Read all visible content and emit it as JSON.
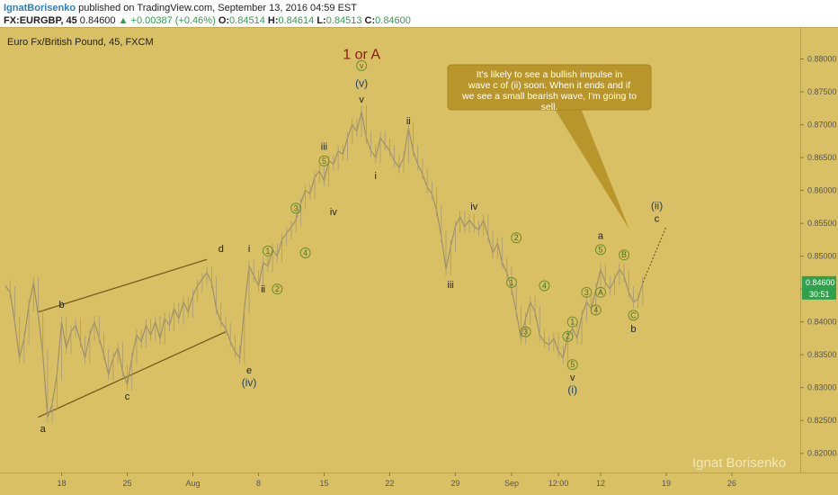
{
  "header": {
    "author": "IgnatBorisenko",
    "published": "published on TradingView.com, September 13, 2016 04:59 EST",
    "symbol": "FX:EURGBP, 45",
    "price": "0.84600",
    "change": "▲ +0.00387 (+0.46%)",
    "o_label": "O:",
    "o_value": "0.84514",
    "h_label": "H:",
    "h_value": "0.84614",
    "l_label": "L:",
    "l_value": "0.84513",
    "c_label": "C:",
    "c_value": "0.84600"
  },
  "colors": {
    "background": "#d9c064",
    "trend_line": "#7a5a1e",
    "price_line": "#9b8c6a",
    "callout": "#b8962b",
    "price_badge": "#2fa14a"
  },
  "chart_data": {
    "type": "line",
    "title": "Euro Fx/British Pound, 45, FXCM",
    "ylim": [
      0.8175,
      0.8835
    ],
    "y_ticks": [
      "0.88000",
      "0.87500",
      "0.87000",
      "0.86500",
      "0.86000",
      "0.85500",
      "0.85000",
      "0.84500",
      "0.84000",
      "0.83500",
      "0.83000",
      "0.82500",
      "0.82000"
    ],
    "y_tick_values": [
      0.88,
      0.875,
      0.87,
      0.865,
      0.86,
      0.855,
      0.85,
      0.845,
      0.84,
      0.835,
      0.83,
      0.825,
      0.82
    ],
    "x_ticks": [
      "18",
      "25",
      "Aug",
      "8",
      "15",
      "22",
      "29",
      "Sep",
      "12:00",
      "12",
      "19",
      "26"
    ],
    "x_tick_index": [
      12,
      26,
      40,
      54,
      68,
      82,
      96,
      108,
      118,
      127,
      141,
      155
    ],
    "x_range": [
      0,
      160
    ],
    "price": [
      [
        0,
        0.8455
      ],
      [
        1,
        0.8445
      ],
      [
        2,
        0.84
      ],
      [
        3,
        0.8345
      ],
      [
        4,
        0.8375
      ],
      [
        5,
        0.8425
      ],
      [
        6,
        0.846
      ],
      [
        7,
        0.841
      ],
      [
        8,
        0.835
      ],
      [
        9,
        0.8255
      ],
      [
        10,
        0.8275
      ],
      [
        11,
        0.832
      ],
      [
        12,
        0.84
      ],
      [
        13,
        0.836
      ],
      [
        14,
        0.8385
      ],
      [
        15,
        0.8395
      ],
      [
        16,
        0.837
      ],
      [
        17,
        0.8345
      ],
      [
        18,
        0.838
      ],
      [
        19,
        0.84
      ],
      [
        20,
        0.8375
      ],
      [
        21,
        0.835
      ],
      [
        22,
        0.832
      ],
      [
        23,
        0.8345
      ],
      [
        24,
        0.836
      ],
      [
        25,
        0.8325
      ],
      [
        26,
        0.8305
      ],
      [
        27,
        0.8345
      ],
      [
        28,
        0.838
      ],
      [
        29,
        0.837
      ],
      [
        30,
        0.8395
      ],
      [
        31,
        0.838
      ],
      [
        32,
        0.84
      ],
      [
        33,
        0.8375
      ],
      [
        34,
        0.8405
      ],
      [
        35,
        0.8395
      ],
      [
        36,
        0.842
      ],
      [
        37,
        0.8405
      ],
      [
        38,
        0.843
      ],
      [
        39,
        0.8415
      ],
      [
        40,
        0.844
      ],
      [
        41,
        0.8455
      ],
      [
        42,
        0.8465
      ],
      [
        43,
        0.8475
      ],
      [
        44,
        0.846
      ],
      [
        45,
        0.842
      ],
      [
        46,
        0.84
      ],
      [
        47,
        0.839
      ],
      [
        48,
        0.837
      ],
      [
        49,
        0.8355
      ],
      [
        50,
        0.8345
      ],
      [
        51,
        0.842
      ],
      [
        52,
        0.8485
      ],
      [
        53,
        0.847
      ],
      [
        54,
        0.8455
      ],
      [
        55,
        0.849
      ],
      [
        56,
        0.8485
      ],
      [
        57,
        0.851
      ],
      [
        58,
        0.85
      ],
      [
        59,
        0.8525
      ],
      [
        60,
        0.8535
      ],
      [
        61,
        0.8545
      ],
      [
        62,
        0.8555
      ],
      [
        63,
        0.858
      ],
      [
        64,
        0.86
      ],
      [
        65,
        0.8595
      ],
      [
        66,
        0.862
      ],
      [
        67,
        0.863
      ],
      [
        68,
        0.8615
      ],
      [
        69,
        0.8645
      ],
      [
        70,
        0.864
      ],
      [
        71,
        0.866
      ],
      [
        72,
        0.8655
      ],
      [
        73,
        0.868
      ],
      [
        74,
        0.87
      ],
      [
        75,
        0.869
      ],
      [
        76,
        0.872
      ],
      [
        77,
        0.868
      ],
      [
        78,
        0.866
      ],
      [
        79,
        0.865
      ],
      [
        80,
        0.868
      ],
      [
        81,
        0.867
      ],
      [
        82,
        0.866
      ],
      [
        83,
        0.8645
      ],
      [
        84,
        0.8635
      ],
      [
        85,
        0.865
      ],
      [
        86,
        0.8695
      ],
      [
        87,
        0.866
      ],
      [
        88,
        0.864
      ],
      [
        89,
        0.8625
      ],
      [
        90,
        0.8605
      ],
      [
        91,
        0.8595
      ],
      [
        92,
        0.857
      ],
      [
        93,
        0.853
      ],
      [
        94,
        0.848
      ],
      [
        95,
        0.8515
      ],
      [
        96,
        0.8545
      ],
      [
        97,
        0.856
      ],
      [
        98,
        0.8545
      ],
      [
        99,
        0.8555
      ],
      [
        100,
        0.8545
      ],
      [
        101,
        0.854
      ],
      [
        102,
        0.8555
      ],
      [
        103,
        0.853
      ],
      [
        104,
        0.8505
      ],
      [
        105,
        0.852
      ],
      [
        106,
        0.849
      ],
      [
        107,
        0.8475
      ],
      [
        108,
        0.845
      ],
      [
        109,
        0.8415
      ],
      [
        110,
        0.8375
      ],
      [
        111,
        0.8405
      ],
      [
        112,
        0.843
      ],
      [
        113,
        0.8415
      ],
      [
        114,
        0.838
      ],
      [
        115,
        0.837
      ],
      [
        116,
        0.8365
      ],
      [
        117,
        0.8375
      ],
      [
        118,
        0.8355
      ],
      [
        119,
        0.8345
      ],
      [
        120,
        0.838
      ],
      [
        121,
        0.839
      ],
      [
        122,
        0.8375
      ],
      [
        123,
        0.841
      ],
      [
        124,
        0.843
      ],
      [
        125,
        0.842
      ],
      [
        126,
        0.845
      ],
      [
        127,
        0.848
      ],
      [
        128,
        0.846
      ],
      [
        129,
        0.845
      ],
      [
        130,
        0.8465
      ],
      [
        131,
        0.848
      ],
      [
        132,
        0.847
      ],
      [
        133,
        0.8445
      ],
      [
        134,
        0.843
      ],
      [
        135,
        0.8435
      ],
      [
        136,
        0.846
      ]
    ],
    "projection": [
      [
        136,
        0.846
      ],
      [
        141,
        0.8545
      ]
    ],
    "trend_lines": [
      {
        "from": [
          7,
          0.8415
        ],
        "to": [
          43,
          0.8495
        ]
      },
      {
        "from": [
          7,
          0.8255
        ],
        "to": [
          47,
          0.8385
        ]
      }
    ],
    "wave_labels": [
      {
        "text": "1 or A",
        "x": 76,
        "y": 0.8808,
        "style": "big"
      },
      {
        "text": "v",
        "x": 76,
        "y": 0.879,
        "style": "circle"
      },
      {
        "text": "(v)",
        "x": 76,
        "y": 0.8763,
        "style": "paren"
      },
      {
        "text": "v",
        "x": 76,
        "y": 0.8739,
        "style": "plain"
      },
      {
        "text": "ii",
        "x": 86,
        "y": 0.8706,
        "style": "plain"
      },
      {
        "text": "iii",
        "x": 68,
        "y": 0.8667,
        "style": "plain"
      },
      {
        "text": "5",
        "x": 68,
        "y": 0.8645,
        "style": "circle"
      },
      {
        "text": "i",
        "x": 79,
        "y": 0.8623,
        "style": "plain"
      },
      {
        "text": "3",
        "x": 62,
        "y": 0.8573,
        "style": "circle"
      },
      {
        "text": "iv",
        "x": 70,
        "y": 0.8568,
        "style": "plain"
      },
      {
        "text": "iv",
        "x": 100,
        "y": 0.8576,
        "style": "plain"
      },
      {
        "text": "1",
        "x": 56,
        "y": 0.8508,
        "style": "circle"
      },
      {
        "text": "4",
        "x": 64,
        "y": 0.8505,
        "style": "circle"
      },
      {
        "text": "i",
        "x": 52,
        "y": 0.8512,
        "style": "plain"
      },
      {
        "text": "ii",
        "x": 55,
        "y": 0.845,
        "style": "plain"
      },
      {
        "text": "2",
        "x": 58,
        "y": 0.845,
        "style": "circle"
      },
      {
        "text": "iii",
        "x": 95,
        "y": 0.8457,
        "style": "plain"
      },
      {
        "text": "2",
        "x": 109,
        "y": 0.8528,
        "style": "circle"
      },
      {
        "text": "1",
        "x": 108,
        "y": 0.846,
        "style": "circle"
      },
      {
        "text": "4",
        "x": 115,
        "y": 0.8455,
        "style": "circle"
      },
      {
        "text": "3",
        "x": 111,
        "y": 0.8385,
        "style": "circle"
      },
      {
        "text": "1",
        "x": 121,
        "y": 0.84,
        "style": "circle"
      },
      {
        "text": "2",
        "x": 120,
        "y": 0.8378,
        "style": "circle"
      },
      {
        "text": "5",
        "x": 121,
        "y": 0.8335,
        "style": "circle"
      },
      {
        "text": "v",
        "x": 121,
        "y": 0.8316,
        "style": "plain"
      },
      {
        "text": "(i)",
        "x": 121,
        "y": 0.8297,
        "style": "paren"
      },
      {
        "text": "3",
        "x": 124,
        "y": 0.8445,
        "style": "circle"
      },
      {
        "text": "A",
        "x": 127,
        "y": 0.8445,
        "style": "circle"
      },
      {
        "text": "4",
        "x": 126,
        "y": 0.8418,
        "style": "circle"
      },
      {
        "text": "5",
        "x": 127,
        "y": 0.851,
        "style": "circle"
      },
      {
        "text": "a",
        "x": 127,
        "y": 0.8532,
        "style": "plain"
      },
      {
        "text": "B",
        "x": 132,
        "y": 0.8502,
        "style": "circle"
      },
      {
        "text": "C",
        "x": 134,
        "y": 0.841,
        "style": "circle"
      },
      {
        "text": "b",
        "x": 134,
        "y": 0.839,
        "style": "plain"
      },
      {
        "text": "(ii)",
        "x": 139,
        "y": 0.8577,
        "style": "paren"
      },
      {
        "text": "c",
        "x": 139,
        "y": 0.8558,
        "style": "plain"
      },
      {
        "text": "a",
        "x": 8,
        "y": 0.8238,
        "style": "plain"
      },
      {
        "text": "b",
        "x": 12,
        "y": 0.8427,
        "style": "plain"
      },
      {
        "text": "c",
        "x": 26,
        "y": 0.8287,
        "style": "plain"
      },
      {
        "text": "d",
        "x": 46,
        "y": 0.8512,
        "style": "plain"
      },
      {
        "text": "e",
        "x": 52,
        "y": 0.8327,
        "style": "plain"
      },
      {
        "text": "(iv)",
        "x": 52,
        "y": 0.8308,
        "style": "paren"
      }
    ],
    "callout": "It's likely to see a bullish impulse in wave c of (ii) soon. When it ends and if we see a small bearish wave, I'm going to sell.",
    "price_badge": "0.84600",
    "timer_badge": "30:51",
    "watermark": "Ignat Borisenko"
  }
}
